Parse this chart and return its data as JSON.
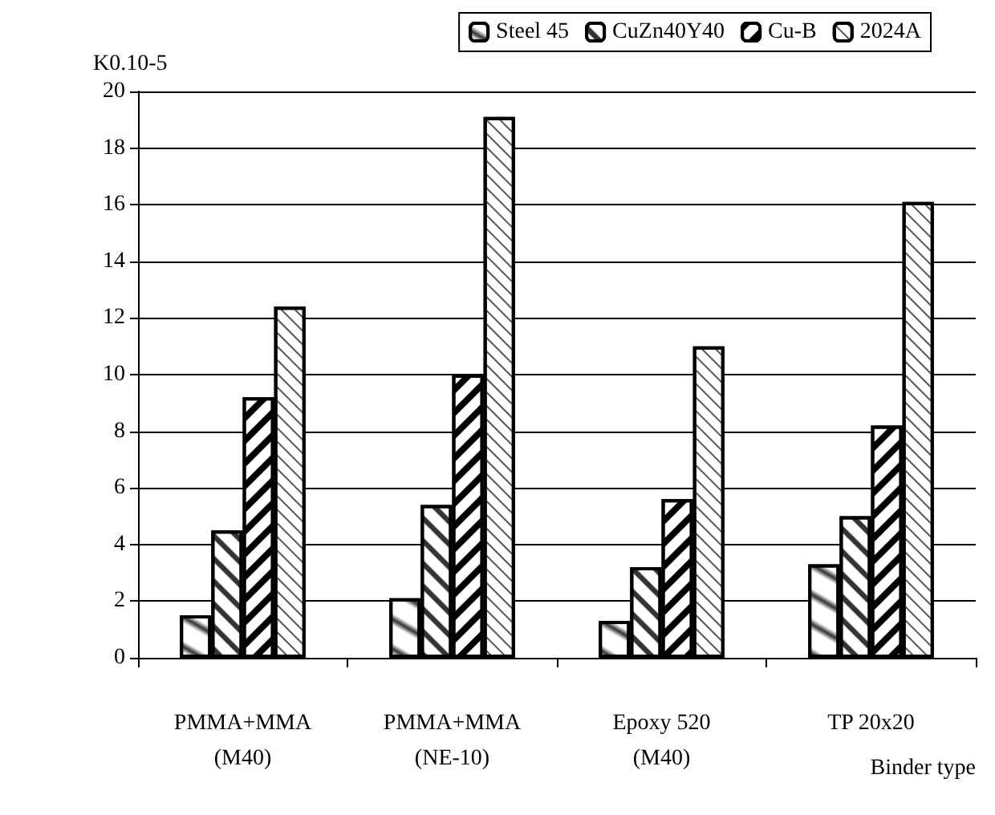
{
  "chart_data": {
    "type": "bar",
    "ylabel": "K0.10-5",
    "xlabel": "Binder type",
    "categories": [
      "PMMA+MMA\n(M40)",
      "PMMA+MMA\n(NE-10)",
      "Epoxy 520\n(M40)",
      "TP 20x20"
    ],
    "series": [
      {
        "name": "Steel 45",
        "color": "#ffffff",
        "values": [
          1.5,
          2.1,
          1.3,
          3.3
        ]
      },
      {
        "name": "CuZn40Y40",
        "color": "#ffffff",
        "values": [
          4.5,
          5.4,
          3.2,
          5.0
        ]
      },
      {
        "name": "Cu-B",
        "color": "#ffffff",
        "values": [
          9.2,
          10.0,
          5.6,
          8.2
        ]
      },
      {
        "name": "2024A",
        "color": "#ffffff",
        "values": [
          12.4,
          19.1,
          11.0,
          16.1
        ]
      }
    ],
    "ylim": [
      0,
      20
    ],
    "yticks": [
      0,
      2,
      4,
      6,
      8,
      10,
      12,
      14,
      16,
      18,
      20
    ],
    "grid": "y",
    "legend": "top right"
  }
}
